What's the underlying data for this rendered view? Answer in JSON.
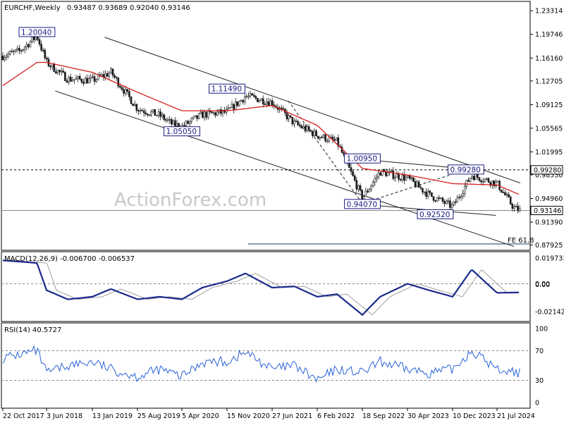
{
  "chart_data": [
    {
      "type": "candlestick",
      "symbol": "EURCHF,Weekly",
      "ohlc_text": "0.93487 0.93689 0.92040 0.93146",
      "ylim": [
        0.8735,
        1.245
      ],
      "y_ticks": [
        "1.23314",
        "1.19746",
        "1.16160",
        "1.12705",
        "1.09125",
        "1.05565",
        "1.01995",
        "0.98530",
        "0.94960",
        "0.91390",
        "0.87925"
      ],
      "x_ticks": [
        "22 Oct 2017",
        "3 Jun 2018",
        "13 Jan 2019",
        "25 Aug 2019",
        "5 Apr 2020",
        "15 Nov 2020",
        "27 Jun 2021",
        "6 Feb 2022",
        "18 Sep 2022",
        "30 Apr 2023",
        "10 Dec 2023",
        "21 Jul 2024"
      ],
      "current_price": "0.93146",
      "level_price": "0.99280",
      "close_path": [
        [
          "22 Oct 2017",
          1.165
        ],
        [
          "Jan 2018",
          1.172
        ],
        [
          "Apr 2018",
          1.195
        ],
        [
          "3 Jun 2018",
          1.155
        ],
        [
          "Sep 2018",
          1.13
        ],
        [
          "13 Jan 2019",
          1.128
        ],
        [
          "Apr 2019",
          1.14
        ],
        [
          "25 Aug 2019",
          1.085
        ],
        [
          "Dec 2019",
          1.075
        ],
        [
          "Feb 2020",
          1.062
        ],
        [
          "5 Apr 2020",
          1.058
        ],
        [
          "Jul 2020",
          1.076
        ],
        [
          "15 Nov 2020",
          1.08
        ],
        [
          "Feb 2021",
          1.104
        ],
        [
          "27 Jun 2021",
          1.095
        ],
        [
          "Oct 2021",
          1.063
        ],
        [
          "6 Feb 2022",
          1.045
        ],
        [
          "May 2022",
          1.035
        ],
        [
          "18 Sep 2022",
          0.95
        ],
        [
          "Dec 2022",
          0.99
        ],
        [
          "30 Apr 2023",
          0.98
        ],
        [
          "Aug 2023",
          0.955
        ],
        [
          "10 Dec 2023",
          0.937
        ],
        [
          "Mar 2024",
          0.985
        ],
        [
          "21 Jul 2024",
          0.972
        ],
        [
          "Oct 2024",
          0.935
        ],
        [
          "Nov 2024",
          0.9315
        ]
      ],
      "moving_average_path": [
        [
          "22 Oct 2017",
          1.12
        ],
        [
          "Apr 2018",
          1.155
        ],
        [
          "3 Jun 2018",
          1.155
        ],
        [
          "13 Jan 2019",
          1.14
        ],
        [
          "25 Aug 2019",
          1.11
        ],
        [
          "5 Apr 2020",
          1.082
        ],
        [
          "15 Nov 2020",
          1.082
        ],
        [
          "27 Jun 2021",
          1.09
        ],
        [
          "6 Feb 2022",
          1.06
        ],
        [
          "18 Sep 2022",
          0.995
        ],
        [
          "30 Apr 2023",
          0.985
        ],
        [
          "10 Dec 2023",
          0.972
        ],
        [
          "21 Jul 2024",
          0.97
        ],
        [
          "Nov 2024",
          0.955
        ]
      ],
      "annotations": [
        {
          "label": "1.20040",
          "date": "Apr 2018",
          "price": 1.2004
        },
        {
          "label": "1.11490",
          "date": "15 Nov 2020",
          "price": 1.1149
        },
        {
          "label": "1.05050",
          "date": "5 Apr 2020",
          "price": 1.0505
        },
        {
          "label": "1.00950",
          "date": "18 Sep 2022",
          "price": 1.0095
        },
        {
          "label": "0.99280",
          "date": "Feb 2024",
          "price": 0.9928
        },
        {
          "label": "0.94070",
          "date": "18 Sep 2022",
          "price": 0.9407
        },
        {
          "label": "0.92520",
          "date": "Sep 2023",
          "price": 0.9252
        }
      ],
      "fe_label": "FE 61.8",
      "watermark": "ActionForex.com"
    },
    {
      "type": "line",
      "title": "MACD(12,26,9) -0.006700 -0.006537",
      "ylim": [
        -0.028,
        0.022
      ],
      "y_ticks": [
        "0.019733",
        "0.00",
        "0.00",
        "-0.021424"
      ],
      "macd_path": [
        [
          "22 Oct 2017",
          0.018
        ],
        [
          "Apr 2018",
          0.016
        ],
        [
          "3 Jun 2018",
          -0.005
        ],
        [
          "Sep 2018",
          -0.012
        ],
        [
          "13 Jan 2019",
          -0.01
        ],
        [
          "Apr 2019",
          -0.004
        ],
        [
          "25 Aug 2019",
          -0.012
        ],
        [
          "Dec 2019",
          -0.01
        ],
        [
          "5 Apr 2020",
          -0.012
        ],
        [
          "Jul 2020",
          -0.003
        ],
        [
          "15 Nov 2020",
          0.002
        ],
        [
          "Feb 2021",
          0.008
        ],
        [
          "27 Jun 2021",
          -0.003
        ],
        [
          "Oct 2021",
          -0.002
        ],
        [
          "6 Feb 2022",
          -0.01
        ],
        [
          "May 2022",
          -0.008
        ],
        [
          "18 Sep 2022",
          -0.024
        ],
        [
          "Dec 2022",
          -0.01
        ],
        [
          "30 Apr 2023",
          0.0
        ],
        [
          "Aug 2023",
          -0.005
        ],
        [
          "10 Dec 2023",
          -0.01
        ],
        [
          "Mar 2024",
          0.011
        ],
        [
          "21 Jul 2024",
          -0.007
        ],
        [
          "Nov 2024",
          -0.0067
        ]
      ]
    },
    {
      "type": "line",
      "title": "RSI(14) 40.5727",
      "ylim": [
        0,
        100
      ],
      "y_ticks": [
        "100",
        "70",
        "30",
        "0"
      ],
      "rsi_path": [
        [
          "22 Oct 2017",
          60
        ],
        [
          "Apr 2018",
          70
        ],
        [
          "3 Jun 2018",
          40
        ],
        [
          "Sep 2018",
          50
        ],
        [
          "13 Jan 2019",
          55
        ],
        [
          "Apr 2019",
          45
        ],
        [
          "25 Aug 2019",
          35
        ],
        [
          "Dec 2019",
          45
        ],
        [
          "5 Apr 2020",
          35
        ],
        [
          "Jul 2020",
          55
        ],
        [
          "15 Nov 2020",
          55
        ],
        [
          "Feb 2021",
          68
        ],
        [
          "27 Jun 2021",
          45
        ],
        [
          "Oct 2021",
          50
        ],
        [
          "6 Feb 2022",
          30
        ],
        [
          "May 2022",
          45
        ],
        [
          "18 Sep 2022",
          40
        ],
        [
          "Dec 2022",
          55
        ],
        [
          "30 Apr 2023",
          45
        ],
        [
          "Aug 2023",
          40
        ],
        [
          "10 Dec 2023",
          45
        ],
        [
          "Mar 2024",
          70
        ],
        [
          "21 Jul 2024",
          45
        ],
        [
          "Nov 2024",
          40.57
        ]
      ]
    }
  ],
  "colors": {
    "candle": "#1a1a1a",
    "ma": "#d81e1e",
    "macd": "#1c2a8c",
    "signal": "#a0a0a0",
    "rsi": "#2b63d8",
    "channel": "#222222",
    "label_border": "#1a1a80",
    "label_bg": "#ffffff"
  }
}
